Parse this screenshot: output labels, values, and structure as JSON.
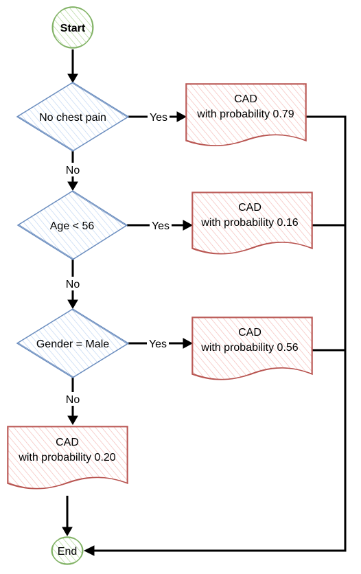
{
  "flowchart": {
    "start": {
      "label": "Start"
    },
    "end": {
      "label": "End"
    },
    "decisions": [
      {
        "label": "No chest pain",
        "yes_label": "Yes",
        "no_label": "No"
      },
      {
        "label": "Age < 56",
        "yes_label": "Yes",
        "no_label": "No"
      },
      {
        "label": "Gender = Male",
        "yes_label": "Yes",
        "no_label": "No"
      }
    ],
    "outcomes": [
      {
        "line1": "CAD",
        "line2": "with probability 0.79"
      },
      {
        "line1": "CAD",
        "line2": "with probability 0.16"
      },
      {
        "line1": "CAD",
        "line2": "with probability 0.56"
      },
      {
        "line1": "CAD",
        "line2": "with probability 0.20"
      }
    ]
  },
  "colors": {
    "terminal_stroke": "#82b366",
    "terminal_fill": "#d5e8d4",
    "decision_stroke": "#6c8ebf",
    "decision_fill": "#dae8fc",
    "outcome_stroke": "#b85450",
    "outcome_fill": "#f8cecc",
    "connector": "#000000"
  }
}
